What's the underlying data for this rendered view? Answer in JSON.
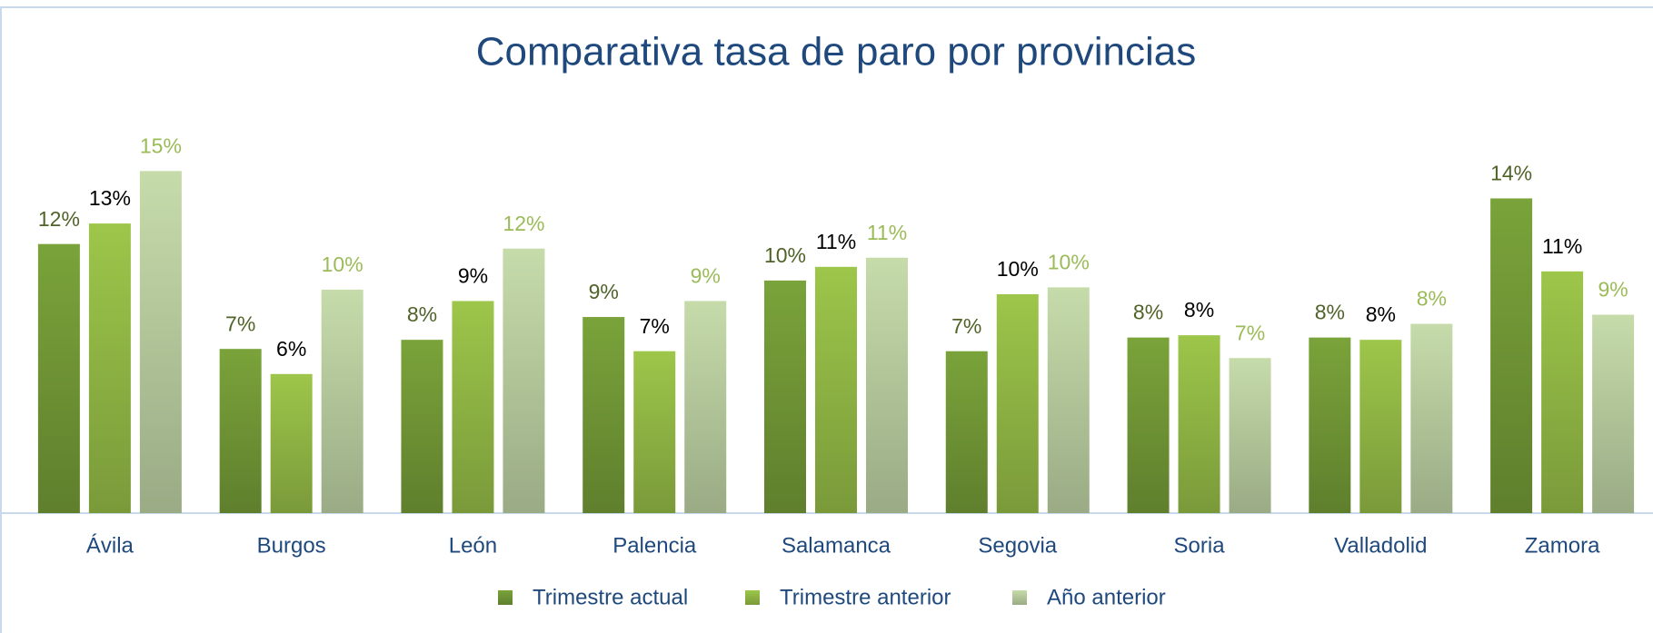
{
  "chart_data": {
    "type": "bar",
    "title": "Comparativa tasa de paro por provincias",
    "categories": [
      "Ávila",
      "Burgos",
      "León",
      "Palencia",
      "Salamanca",
      "Segovia",
      "Soria",
      "Valladolid",
      "Zamora"
    ],
    "series": [
      {
        "name": "Trimestre actual",
        "color": "#7aa33a",
        "label_color": "#4f6228",
        "values": [
          11.8,
          7.2,
          7.6,
          8.6,
          10.2,
          7.1,
          7.7,
          7.7,
          13.8
        ],
        "value_labels": [
          "12%",
          "7%",
          "8%",
          "9%",
          "10%",
          "7%",
          "8%",
          "8%",
          "14%"
        ]
      },
      {
        "name": "Trimestre anterior",
        "color": "#9dc64a",
        "label_color": "#000000",
        "values": [
          12.7,
          6.1,
          9.3,
          7.1,
          10.8,
          9.6,
          7.8,
          7.6,
          10.6
        ],
        "value_labels": [
          "13%",
          "6%",
          "9%",
          "7%",
          "11%",
          "10%",
          "8%",
          "8%",
          "11%"
        ]
      },
      {
        "name": "Año anterior",
        "color": "#c6dbaa",
        "label_color": "#9bbb59",
        "values": [
          15.0,
          9.8,
          11.6,
          9.3,
          11.2,
          9.9,
          6.8,
          8.3,
          8.7
        ],
        "value_labels": [
          "15%",
          "10%",
          "12%",
          "9%",
          "11%",
          "10%",
          "7%",
          "8%",
          "9%"
        ]
      }
    ],
    "ylim": [
      0,
      18
    ],
    "legend": "bottom"
  }
}
